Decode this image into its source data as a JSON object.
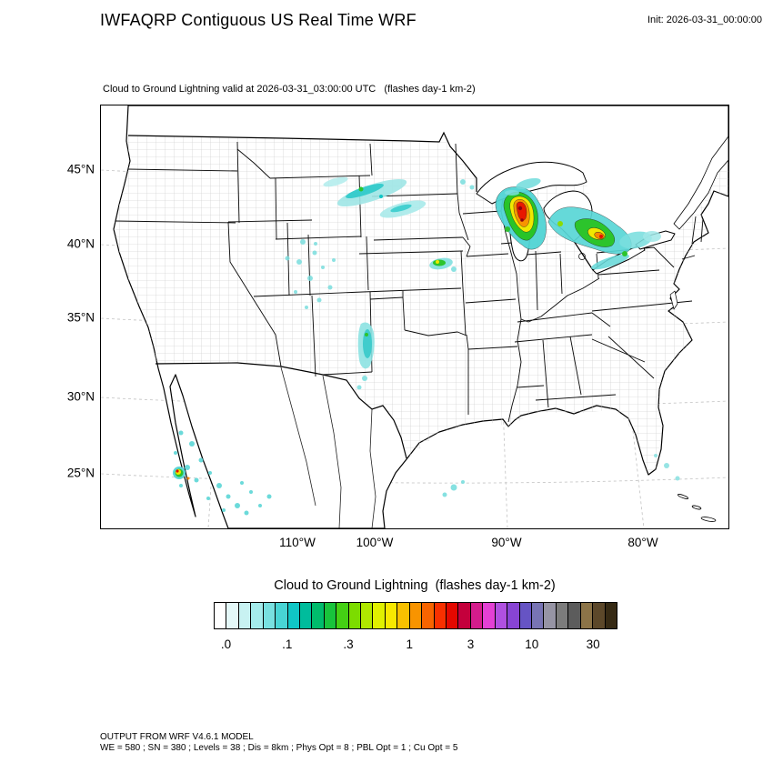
{
  "header": {
    "title": "IWFAQRP Contiguous US Real Time WRF",
    "init_label": "Init: 2026-03-31_00:00:00"
  },
  "map": {
    "subtitle": "Cloud to Ground Lightning valid at 2026-03-31_03:00:00 UTC   (flashes day-1 km-2)",
    "lat_labels": [
      "45°N",
      "40°N",
      "35°N",
      "30°N",
      "25°N"
    ],
    "lon_labels": [
      "110°W",
      "100°W",
      "90°W",
      "80°W"
    ]
  },
  "legend": {
    "title": "Cloud to Ground Lightning  (flashes day-1 km-2)",
    "tick_labels": [
      ".0",
      ".1",
      ".3",
      "1",
      "3",
      "10",
      "30"
    ],
    "colors": [
      "#ffffff",
      "#e4f8f8",
      "#c8f2f2",
      "#a4ecec",
      "#78e0e0",
      "#48d4d4",
      "#10c6c6",
      "#00bc9c",
      "#00bc6c",
      "#18c43c",
      "#44d014",
      "#7cdc00",
      "#b0e800",
      "#e0f000",
      "#f8e800",
      "#f8c000",
      "#f89400",
      "#f86400",
      "#f83000",
      "#e40800",
      "#c4003c",
      "#d41c8c",
      "#e440d4",
      "#b050e0",
      "#8844d4",
      "#6654c4",
      "#7874b4",
      "#9694a4",
      "#7c7c7c",
      "#5c5c5c",
      "#8c7448",
      "#5c482a",
      "#362a14"
    ]
  },
  "footer": {
    "line1": "OUTPUT FROM WRF V4.6.1 MODEL",
    "line2": "WE = 580 ; SN = 380 ; Levels = 38 ; Dis = 8km ; Phys Opt = 8 ; PBL Opt = 1 ; Cu Opt = 5"
  },
  "chart_data": {
    "type": "heatmap",
    "title": "Cloud to Ground Lightning valid at 2026-03-31_03:00:00 UTC",
    "units": "flashes day-1 km-2",
    "colorbar_levels": [
      0.0,
      0.1,
      0.3,
      1,
      3,
      10,
      30
    ],
    "x_ticks": [
      "110°W",
      "100°W",
      "90°W",
      "80°W"
    ],
    "y_ticks": [
      "45°N",
      "40°N",
      "35°N",
      "30°N",
      "25°N"
    ],
    "regions": [
      {
        "area": "Wisconsin / Lake Michigan / northwest lower Michigan",
        "peak_value": "10-30",
        "colors": "cyan-green-yellow-orange-red core"
      },
      {
        "area": "Lake Huron / southern Ontario / Lake Erie shores",
        "peak_value": "1-10",
        "colors": "cyan with green-yellow-orange core"
      },
      {
        "area": "North Dakota / South Dakota diagonal streaks",
        "peak_value": "0.1-0.3",
        "colors": "light cyan"
      },
      {
        "area": "Wyoming / Utah / Colorado scattered cells",
        "peak_value": "0.05-0.1",
        "colors": "pale cyan specks"
      },
      {
        "area": "Colorado / Kansas border band",
        "peak_value": "0.1-0.3",
        "colors": "cyan"
      },
      {
        "area": "Iowa / Illinois cell",
        "peak_value": "0.3-1",
        "colors": "green with yellow dot"
      },
      {
        "area": "Northwest Mexico / Gulf of California coast",
        "peak_value": "1-3",
        "colors": "scattered cyan, one green-yellow-red cluster"
      },
      {
        "area": "Gulf of Mexico and Florida Atlantic waters",
        "peak_value": "0.05-0.1",
        "colors": "isolated cyan specks"
      }
    ]
  }
}
